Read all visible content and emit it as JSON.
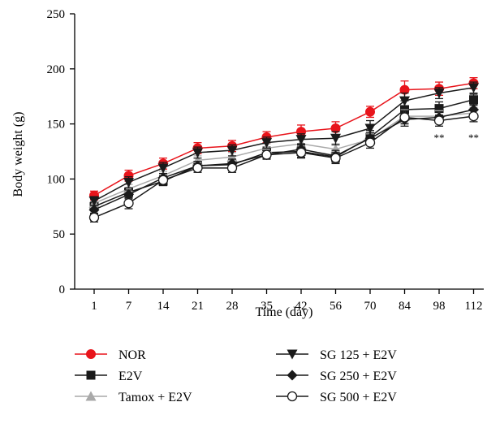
{
  "chart_data": {
    "type": "line",
    "xlabel": "Time (day)",
    "ylabel": "Body weight (g)",
    "categories": [
      "1",
      "7",
      "14",
      "21",
      "28",
      "35",
      "42",
      "56",
      "70",
      "84",
      "98",
      "112"
    ],
    "ylim": [
      0,
      250
    ],
    "yticks": [
      "0",
      "50",
      "100",
      "150",
      "200",
      "250"
    ],
    "grid": false,
    "legend_position": "bottom",
    "series": [
      {
        "name": "NOR",
        "color": "#e8141b",
        "marker": "circle-filled",
        "values": [
          85,
          103,
          114,
          128,
          130,
          138,
          143,
          146,
          161,
          181,
          182,
          187
        ],
        "errors": [
          4,
          5,
          5,
          5,
          5,
          5,
          6,
          6,
          5,
          8,
          6,
          5
        ]
      },
      {
        "name": "E2V",
        "color": "#1a1a1a",
        "marker": "square-filled",
        "values": [
          75,
          88,
          98,
          112,
          113,
          124,
          125,
          120,
          138,
          163,
          164,
          172
        ],
        "errors": [
          4,
          4,
          4,
          4,
          4,
          5,
          5,
          5,
          6,
          8,
          6,
          5
        ]
      },
      {
        "name": "Tamox + E2V",
        "color": "#a9a9a9",
        "marker": "triangle-up-filled",
        "values": [
          78,
          91,
          103,
          117,
          120,
          128,
          132,
          127,
          136,
          157,
          157,
          160
        ],
        "errors": [
          4,
          4,
          4,
          4,
          4,
          4,
          5,
          5,
          5,
          6,
          5,
          5
        ]
      },
      {
        "name": "SG 125 + E2V",
        "color": "#1a1a1a",
        "marker": "triangle-down-filled",
        "values": [
          80,
          97,
          110,
          124,
          126,
          133,
          136,
          137,
          146,
          171,
          178,
          183
        ],
        "errors": [
          4,
          5,
          5,
          5,
          5,
          5,
          5,
          6,
          7,
          7,
          5,
          5
        ]
      },
      {
        "name": "SG 250 + E2V",
        "color": "#1a1a1a",
        "marker": "diamond-filled",
        "values": [
          72,
          86,
          101,
          112,
          114,
          122,
          127,
          121,
          137,
          154,
          156,
          163
        ],
        "errors": [
          4,
          4,
          4,
          4,
          4,
          4,
          5,
          5,
          5,
          6,
          5,
          5
        ]
      },
      {
        "name": "SG 500 + E2V",
        "color": "#1a1a1a",
        "marker": "circle-open",
        "values": [
          65,
          78,
          99,
          110,
          110,
          122,
          124,
          119,
          133,
          156,
          153,
          157
        ],
        "errors": [
          4,
          5,
          4,
          4,
          4,
          4,
          5,
          5,
          5,
          6,
          5,
          5
        ]
      }
    ],
    "annotations": [
      {
        "text": "**",
        "x": "98",
        "y": 137
      },
      {
        "text": "**",
        "x": "112",
        "y": 137
      }
    ]
  }
}
